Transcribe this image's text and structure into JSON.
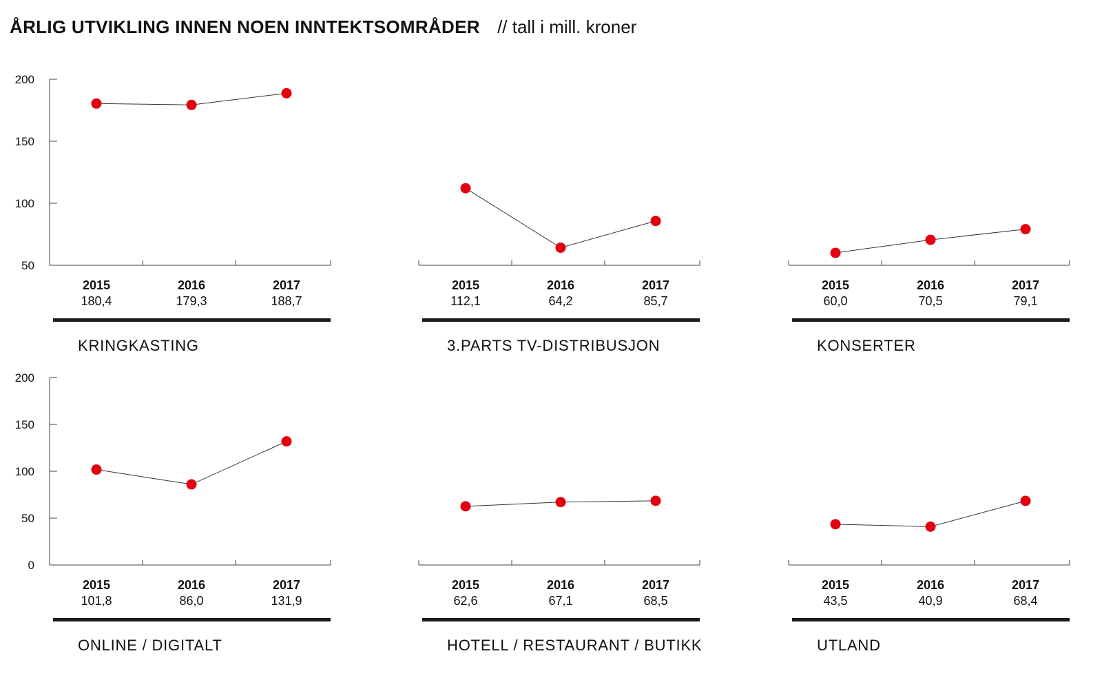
{
  "header": {
    "title": "ÅRLIG UTVIKLING INNEN NOEN INNTEKTSOMRÅDER",
    "subtitle": "// tall i mill. kroner"
  },
  "colors": {
    "point": "#e3000f",
    "line": "#333333",
    "axis": "#444444",
    "rule": "#1a1a1a"
  },
  "chart_data": [
    {
      "type": "line",
      "title": "KRINGKASTING",
      "categories": [
        "2015",
        "2016",
        "2017"
      ],
      "values": [
        180.4,
        179.3,
        188.7
      ],
      "value_labels": [
        "180,4",
        "179,3",
        "188,7"
      ],
      "ylim": [
        50,
        200
      ],
      "yticks": [
        "200",
        "150",
        "100",
        "50"
      ],
      "show_y_axis": true,
      "grid": false
    },
    {
      "type": "line",
      "title": "3.PARTS TV-DISTRIBUSJON",
      "categories": [
        "2015",
        "2016",
        "2017"
      ],
      "values": [
        112.1,
        64.2,
        85.7
      ],
      "value_labels": [
        "112,1",
        "64,2",
        "85,7"
      ],
      "ylim": [
        50,
        200
      ],
      "yticks": [],
      "show_y_axis": false,
      "grid": false
    },
    {
      "type": "line",
      "title": "KONSERTER",
      "categories": [
        "2015",
        "2016",
        "2017"
      ],
      "values": [
        60.0,
        70.5,
        79.1
      ],
      "value_labels": [
        "60,0",
        "70,5",
        "79,1"
      ],
      "ylim": [
        50,
        200
      ],
      "yticks": [],
      "show_y_axis": false,
      "grid": false
    },
    {
      "type": "line",
      "title": "ONLINE / DIGITALT",
      "categories": [
        "2015",
        "2016",
        "2017"
      ],
      "values": [
        101.8,
        86.0,
        131.9
      ],
      "value_labels": [
        "101,8",
        "86,0",
        "131,9"
      ],
      "ylim": [
        0,
        200
      ],
      "yticks": [
        "200",
        "150",
        "100",
        "50",
        "0"
      ],
      "show_y_axis": true,
      "grid": false
    },
    {
      "type": "line",
      "title": "HOTELL / RESTAURANT / BUTIKK",
      "categories": [
        "2015",
        "2016",
        "2017"
      ],
      "values": [
        62.6,
        67.1,
        68.5
      ],
      "value_labels": [
        "62,6",
        "67,1",
        "68,5"
      ],
      "ylim": [
        0,
        200
      ],
      "yticks": [],
      "show_y_axis": false,
      "grid": false
    },
    {
      "type": "line",
      "title": "UTLAND",
      "categories": [
        "2015",
        "2016",
        "2017"
      ],
      "values": [
        43.5,
        40.9,
        68.4
      ],
      "value_labels": [
        "43,5",
        "40,9",
        "68,4"
      ],
      "ylim": [
        0,
        200
      ],
      "yticks": [],
      "show_y_axis": false,
      "grid": false
    }
  ]
}
